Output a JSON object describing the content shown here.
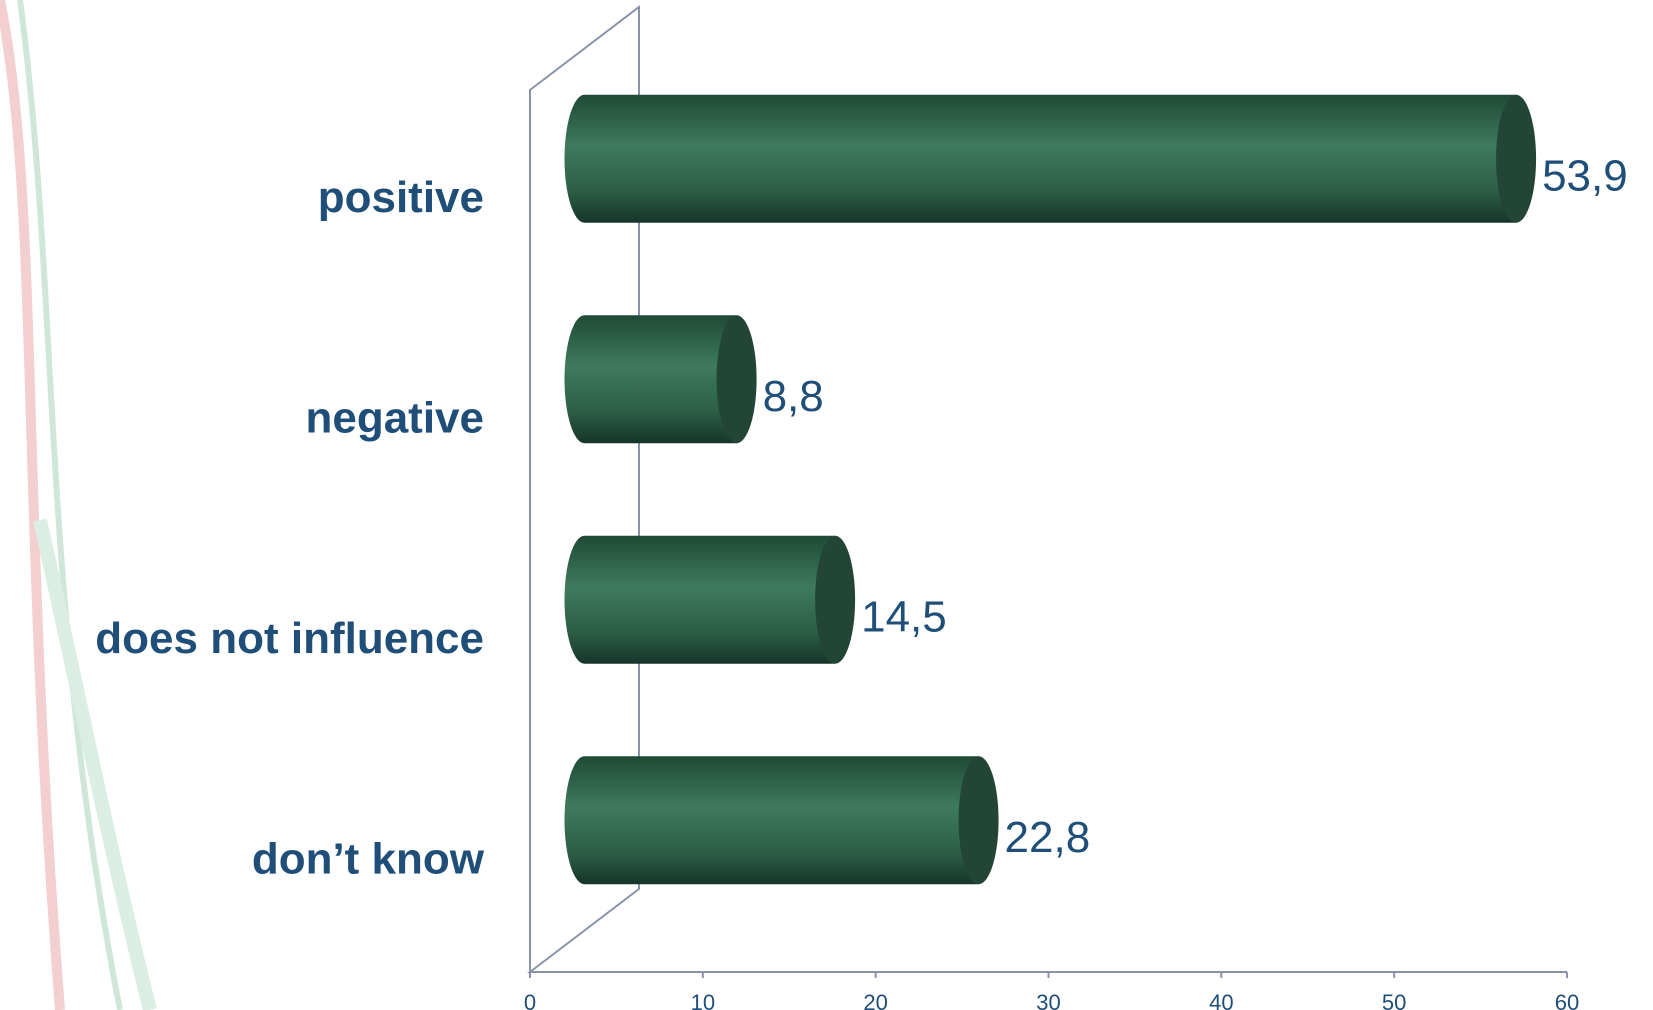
{
  "chart_data": {
    "type": "bar",
    "orientation": "horizontal",
    "categories": [
      "positive",
      "negative",
      "does not influence",
      "don’t know"
    ],
    "values": [
      53.9,
      8.8,
      14.5,
      22.8
    ],
    "value_labels": [
      "53,9",
      "8,8",
      "14,5",
      "22,8"
    ],
    "color": "#2f6b50",
    "xlim": [
      0,
      60
    ],
    "xticks": [
      0,
      10,
      20,
      30,
      40,
      50,
      60
    ]
  }
}
